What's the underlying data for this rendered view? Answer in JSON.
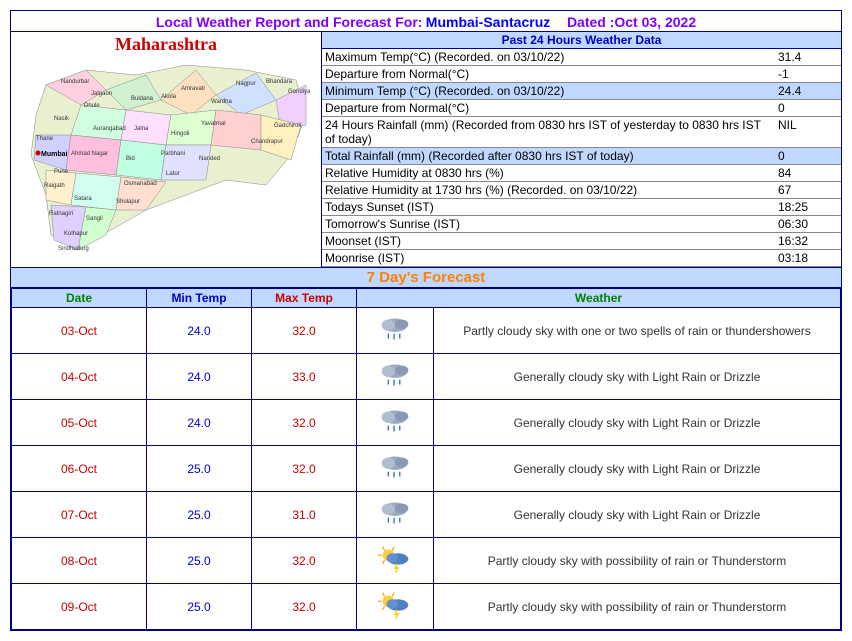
{
  "header": {
    "prefix": "Local Weather Report and Forecast For:",
    "location": "Mumbai-Santacruz",
    "date_label": "Dated :Oct 03, 2022"
  },
  "map": {
    "title": "Maharashtra",
    "marker_label": "Mumbai",
    "districts": [
      "Nandurbar",
      "Jalgaon",
      "Buldana",
      "Akola",
      "Amravati",
      "Wardha",
      "Nagpur",
      "Bhandara",
      "Gondiya",
      "Gadchiroli",
      "Chandrapur",
      "Yavatmal",
      "Hingoli",
      "Nanded",
      "Parbhani",
      "Jalna",
      "Aurangabad",
      "Bid",
      "Latur",
      "Osmanabad",
      "Sholapur",
      "Sangli",
      "Kolhapur",
      "Sindhudurg",
      "Ratnagiri",
      "Satara",
      "Pune",
      "Raigath",
      "Thane",
      "Ahmad Nagar",
      "Nasik",
      "Dhule"
    ]
  },
  "past24": {
    "title": "Past 24 Hours Weather Data",
    "rows": [
      {
        "label": "Maximum Temp(°C) (Recorded. on 03/10/22)",
        "value": "31.4",
        "hl": false
      },
      {
        "label": "Departure from Normal(°C)",
        "value": "-1",
        "hl": false
      },
      {
        "label": "Minimum Temp (°C) (Recorded. on 03/10/22)",
        "value": "24.4",
        "hl": true
      },
      {
        "label": "Departure from Normal(°C)",
        "value": "0",
        "hl": false
      },
      {
        "label": "24 Hours Rainfall (mm) (Recorded from 0830 hrs IST of yesterday to 0830 hrs IST of today)",
        "value": "NIL",
        "hl": false
      },
      {
        "label": "Total Rainfall (mm) (Recorded after 0830 hrs IST of today)",
        "value": "0",
        "hl": true
      },
      {
        "label": "Relative Humidity at 0830 hrs (%)",
        "value": "84",
        "hl": false
      },
      {
        "label": "Relative Humidity at 1730 hrs (%) (Recorded. on 03/10/22)",
        "value": "67",
        "hl": false
      },
      {
        "label": "Todays Sunset (IST)",
        "value": "18:25",
        "hl": false
      },
      {
        "label": "Tomorrow's Sunrise (IST)",
        "value": "06:30",
        "hl": false
      },
      {
        "label": "Moonset (IST)",
        "value": "16:32",
        "hl": false
      },
      {
        "label": "Moonrise (IST)",
        "value": "03:18",
        "hl": false
      }
    ]
  },
  "forecast": {
    "title": "7 Day's Forecast",
    "headers": {
      "date": "Date",
      "min": "Min Temp",
      "max": "Max Temp",
      "wx": "Weather"
    },
    "rows": [
      {
        "date": "03-Oct",
        "min": "24.0",
        "max": "32.0",
        "icon": "rain",
        "desc": "Partly cloudy sky with one or two spells of rain or thundershowers"
      },
      {
        "date": "04-Oct",
        "min": "24.0",
        "max": "33.0",
        "icon": "rain",
        "desc": "Generally cloudy sky with Light Rain or Drizzle"
      },
      {
        "date": "05-Oct",
        "min": "24.0",
        "max": "32.0",
        "icon": "rain",
        "desc": "Generally cloudy sky with Light Rain or Drizzle"
      },
      {
        "date": "06-Oct",
        "min": "25.0",
        "max": "32.0",
        "icon": "rain",
        "desc": "Generally cloudy sky with Light Rain or Drizzle"
      },
      {
        "date": "07-Oct",
        "min": "25.0",
        "max": "31.0",
        "icon": "rain",
        "desc": "Generally cloudy sky with Light Rain or Drizzle"
      },
      {
        "date": "08-Oct",
        "min": "25.0",
        "max": "32.0",
        "icon": "storm",
        "desc": "Partly cloudy sky with possibility of rain or Thunderstorm"
      },
      {
        "date": "09-Oct",
        "min": "25.0",
        "max": "32.0",
        "icon": "storm",
        "desc": "Partly cloudy sky with possibility of rain or Thunderstorm"
      }
    ]
  },
  "colors": {
    "border": "#000080",
    "header_purple": "#8000ff",
    "link_blue": "#0000ff",
    "map_red": "#cc0000",
    "band_blue": "#c0d8ff",
    "forecast_orange": "#ff8000",
    "th_green": "#008000",
    "th_blue": "#0000cc",
    "th_red": "#cc0000"
  }
}
